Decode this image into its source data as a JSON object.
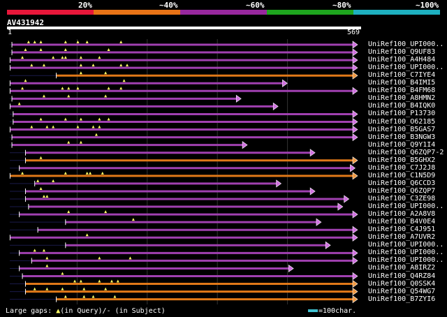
{
  "header": {
    "percent_labels": [
      "20%",
      "~40%",
      "~60%",
      "~80%",
      "~100%"
    ],
    "colors": [
      "#e8173a",
      "#e87316",
      "#98289e",
      "#1ea51e",
      "#1eb0c0"
    ],
    "query_id": "AV431942",
    "ruler_start": "1",
    "ruler_end": "569"
  },
  "legend": {
    "gaps_text": "Large gaps: ",
    "in_query": "(in Query)/",
    "in_subject": "- (in Subject)",
    "scale_text": "=100char."
  },
  "alignment": {
    "query_length": 569,
    "hits": [
      {
        "id": "UniRef100_UPI000..",
        "color": "purple",
        "start": 8,
        "end": 569,
        "arrow": true,
        "gaps": [
          35,
          45,
          55,
          95,
          115,
          130,
          185
        ]
      },
      {
        "id": "UniRef100_Q9UF83",
        "color": "purple",
        "start": 8,
        "end": 569,
        "arrow": true,
        "gaps": [
          30,
          55,
          95,
          165
        ]
      },
      {
        "id": "UniRef100_A4H484",
        "color": "purple",
        "start": 5,
        "end": 569,
        "arrow": true,
        "gaps": [
          25,
          75,
          90,
          95,
          120,
          150
        ]
      },
      {
        "id": "UniRef100_UPI000..",
        "color": "purple",
        "start": 5,
        "end": 569,
        "arrow": true,
        "gaps": [
          40,
          60,
          120,
          140,
          185,
          195
        ]
      },
      {
        "id": "UniRef100_C7IYE4",
        "color": "orange",
        "start": 80,
        "end": 569,
        "arrow": true,
        "gaps": [
          120,
          160
        ]
      },
      {
        "id": "UniRef100_B4IMI5",
        "color": "purple",
        "start": 5,
        "end": 455,
        "arrow": true,
        "gaps": [
          30,
          190
        ]
      },
      {
        "id": "UniRef100_B4FM68",
        "color": "purple",
        "start": 5,
        "end": 569,
        "arrow": true,
        "gaps": [
          25,
          90,
          100,
          115,
          165,
          185
        ]
      },
      {
        "id": "UniRef100_A8HMN2",
        "color": "purple",
        "start": 8,
        "end": 380,
        "arrow": true,
        "gaps": [
          60,
          100,
          160
        ]
      },
      {
        "id": "UniRef100_B4IQK0",
        "color": "purple",
        "start": 5,
        "end": 440,
        "arrow": true,
        "gaps": [
          20
        ]
      },
      {
        "id": "UniRef100_P13730",
        "color": "purple",
        "start": 10,
        "end": 569,
        "arrow": true,
        "gaps": []
      },
      {
        "id": "UniRef100_O62185",
        "color": "purple",
        "start": 10,
        "end": 569,
        "arrow": true,
        "gaps": [
          55,
          95,
          120,
          150,
          165
        ]
      },
      {
        "id": "UniRef100_B5GAS7",
        "color": "purple",
        "start": 5,
        "end": 569,
        "arrow": true,
        "gaps": [
          40,
          65,
          75,
          115,
          140,
          150
        ]
      },
      {
        "id": "UniRef100_B3NGW3",
        "color": "purple",
        "start": 8,
        "end": 569,
        "arrow": true,
        "gaps": [
          145
        ]
      },
      {
        "id": "UniRef100_Q9Y1I4",
        "color": "purple",
        "start": 8,
        "end": 390,
        "arrow": true,
        "gaps": [
          100,
          120
        ]
      },
      {
        "id": "UniRef100_Q6ZQP7-2",
        "color": "purple",
        "start": 30,
        "end": 500,
        "arrow": true,
        "gaps": []
      },
      {
        "id": "UniRef100_B5GHX2",
        "color": "orange",
        "start": 30,
        "end": 569,
        "arrow": true,
        "gaps": [
          55
        ]
      },
      {
        "id": "UniRef100_C7J2J8",
        "color": "purple",
        "start": 20,
        "end": 565,
        "arrow": true,
        "gaps": []
      },
      {
        "id": "UniRef100_C1N5D9",
        "color": "orange",
        "start": 5,
        "end": 569,
        "arrow": true,
        "gaps": [
          25,
          95,
          130,
          135,
          155
        ]
      },
      {
        "id": "UniRef100_Q6CCD3",
        "color": "purple",
        "start": 45,
        "end": 445,
        "arrow": true,
        "gaps": [
          50,
          75
        ]
      },
      {
        "id": "UniRef100_Q6ZQP7",
        "color": "purple",
        "start": 30,
        "end": 500,
        "arrow": true,
        "gaps": [
          55
        ]
      },
      {
        "id": "UniRef100_C3ZE98",
        "color": "purple",
        "start": 30,
        "end": 555,
        "arrow": true,
        "gaps": [
          60,
          65
        ]
      },
      {
        "id": "UniRef100_UPI000..",
        "color": "purple",
        "start": 35,
        "end": 545,
        "arrow": true,
        "gaps": []
      },
      {
        "id": "UniRef100_A2A8V8",
        "color": "purple",
        "start": 20,
        "end": 569,
        "arrow": true,
        "gaps": [
          100,
          160
        ]
      },
      {
        "id": "UniRef100_B4V0E4",
        "color": "purple",
        "start": 95,
        "end": 510,
        "arrow": true,
        "gaps": [
          205
        ]
      },
      {
        "id": "UniRef100_C4J951",
        "color": "purple",
        "start": 50,
        "end": 569,
        "arrow": true,
        "gaps": []
      },
      {
        "id": "UniRef100_A7UVR2",
        "color": "purple",
        "start": 5,
        "end": 569,
        "arrow": true,
        "gaps": [
          130
        ]
      },
      {
        "id": "UniRef100_UPI000..",
        "color": "purple",
        "start": 95,
        "end": 525,
        "arrow": true,
        "gaps": []
      },
      {
        "id": "UniRef100_UPI000..",
        "color": "purple",
        "start": 20,
        "end": 569,
        "arrow": true,
        "gaps": [
          45,
          60
        ]
      },
      {
        "id": "UniRef100_UPI000..",
        "color": "purple",
        "start": 40,
        "end": 569,
        "arrow": true,
        "gaps": [
          65,
          150,
          200
        ]
      },
      {
        "id": "UniRef100_A8IRZ2",
        "color": "purple",
        "start": 20,
        "end": 465,
        "arrow": true,
        "gaps": [
          65
        ]
      },
      {
        "id": "UniRef100_Q4RZ84",
        "color": "purple",
        "start": 25,
        "end": 569,
        "arrow": true,
        "gaps": [
          90
        ]
      },
      {
        "id": "UniRef100_Q0SSK4",
        "color": "orange",
        "start": 30,
        "end": 569,
        "arrow": true,
        "gaps": [
          110,
          120,
          150,
          170,
          180
        ]
      },
      {
        "id": "UniRef100_Q54WG7",
        "color": "orange",
        "start": 30,
        "end": 569,
        "arrow": true,
        "gaps": [
          45,
          65,
          90,
          125,
          160
        ]
      },
      {
        "id": "UniRef100_B7ZYI6",
        "color": "orange",
        "start": 80,
        "end": 569,
        "arrow": true,
        "gaps": [
          95,
          125,
          140,
          175
        ]
      }
    ]
  }
}
